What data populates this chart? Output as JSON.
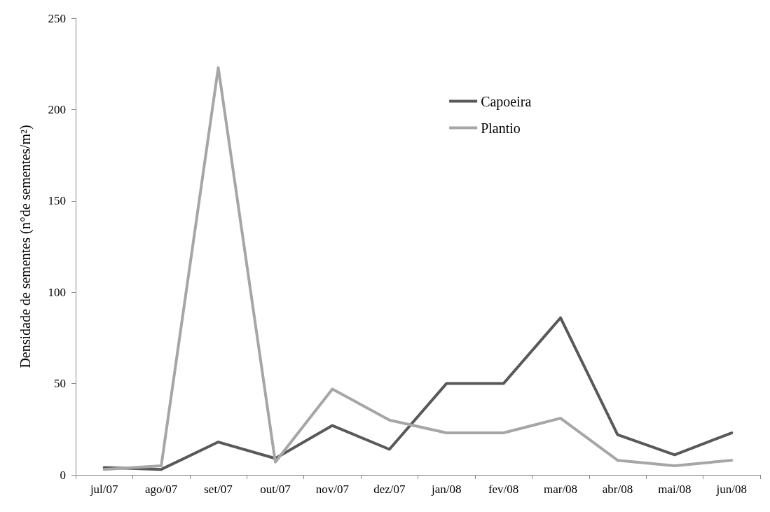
{
  "chart_data": {
    "type": "line",
    "ylabel": "Densidade de sementes (n°de sementes/m²)",
    "categories": [
      "jul/07",
      "ago/07",
      "set/07",
      "out/07",
      "nov/07",
      "dez/07",
      "jan/08",
      "fev/08",
      "mar/08",
      "abr/08",
      "mai/08",
      "jun/08"
    ],
    "series": [
      {
        "name": "Capoeira",
        "color": "#595959",
        "values": [
          4,
          3,
          18,
          9,
          27,
          14,
          50,
          50,
          86,
          22,
          11,
          23
        ]
      },
      {
        "name": "Plantio",
        "color": "#a6a6a6",
        "values": [
          3,
          5,
          223,
          7,
          47,
          30,
          23,
          23,
          31,
          8,
          5,
          8
        ]
      }
    ],
    "ylim": [
      0,
      250
    ],
    "yticks": [
      0,
      50,
      100,
      150,
      200,
      250
    ],
    "grid": false,
    "legend": "top right",
    "marker": "none",
    "line_style": "solid"
  }
}
